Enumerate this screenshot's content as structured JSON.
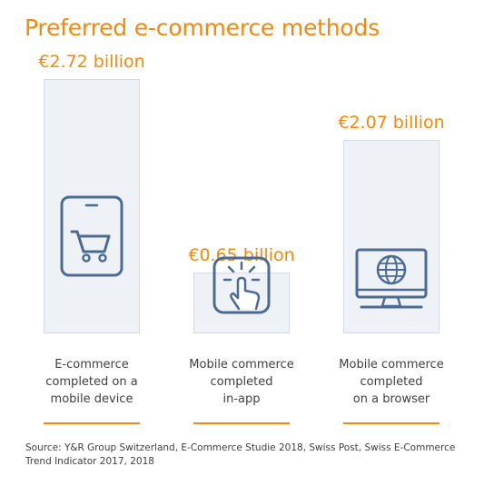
{
  "title": "Preferred e-commerce methods",
  "source": "Source: Y&R Group Switzerland, E-Commerce Studie 2018, Swiss Post, Swiss E-Commerce Trend Indicator 2017, 2018",
  "colors": {
    "accent": "#ee8a12",
    "bar_fill": "#eef1f6",
    "bar_border": "#d3dae5",
    "icon": "#4c6b94",
    "text": "#404040"
  },
  "chart_data": {
    "type": "bar",
    "unit": "€ billion",
    "categories": [
      [
        "E-commerce",
        "completed on a",
        "mobile device"
      ],
      [
        "Mobile commerce",
        "completed",
        "in-app"
      ],
      [
        "Mobile commerce",
        "completed",
        "on a browser"
      ]
    ],
    "values": [
      2.72,
      0.65,
      2.07
    ],
    "value_labels": [
      "€2.72 billion",
      "€0.65 billion",
      "€2.07 billion"
    ],
    "icons": [
      "smartphone-cart-icon",
      "tap-touch-icon",
      "monitor-globe-icon"
    ],
    "ylim": [
      0,
      2.72
    ],
    "grid": false,
    "legend": "none"
  }
}
